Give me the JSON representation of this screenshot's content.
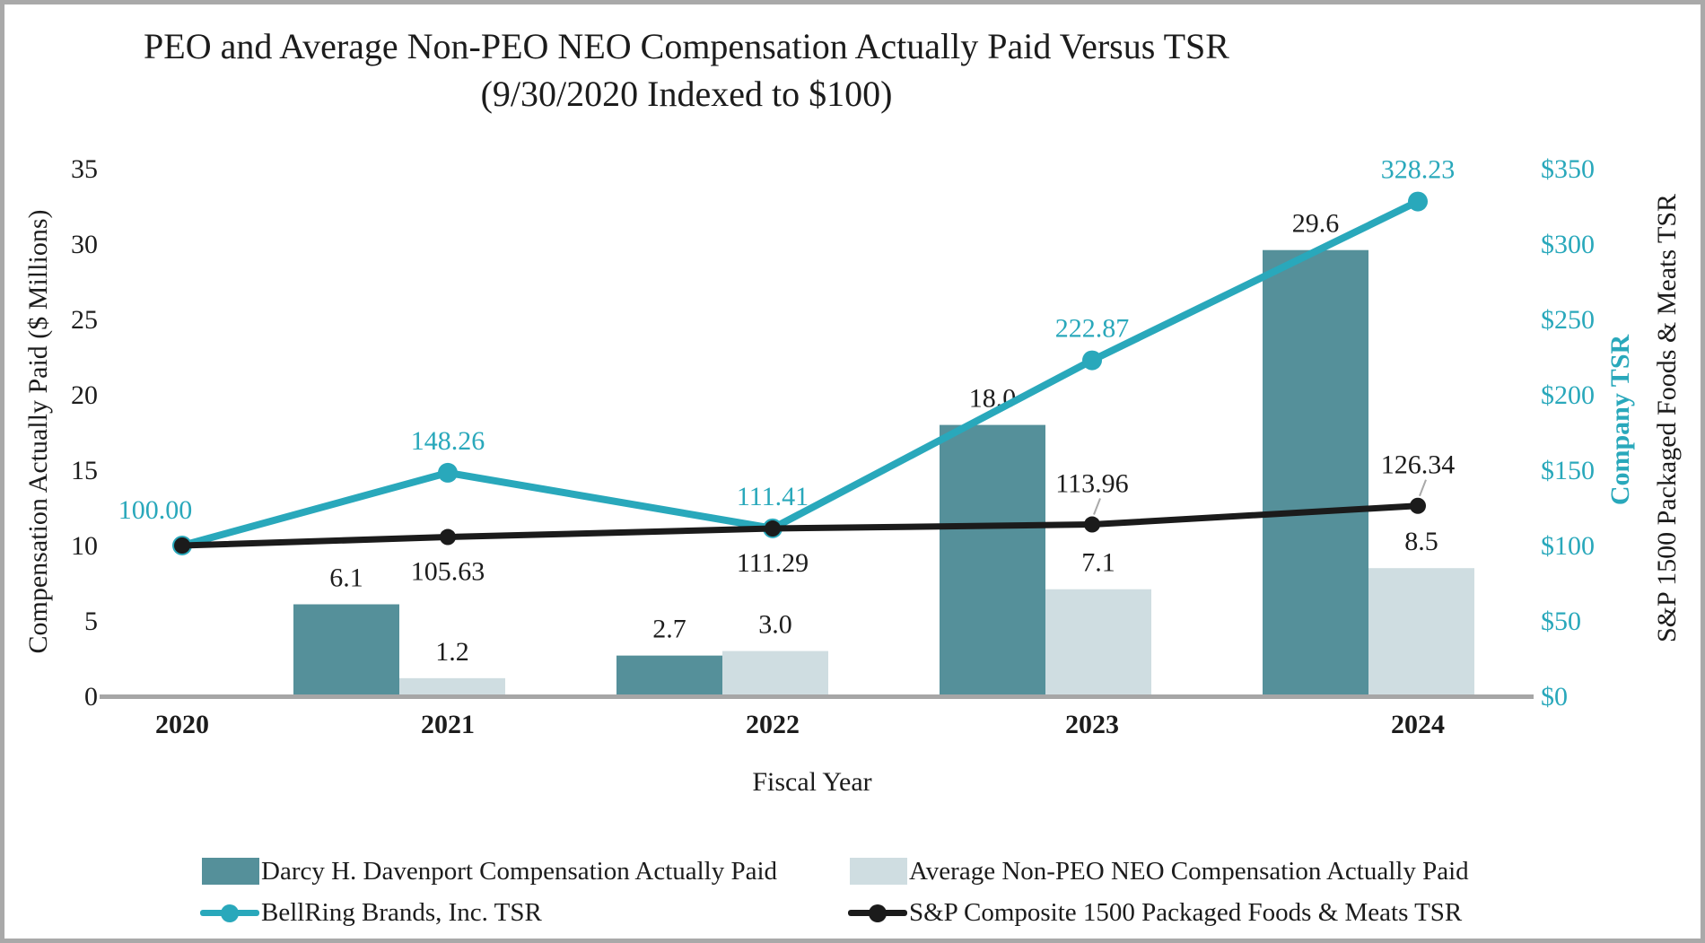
{
  "title": {
    "line1": "PEO and Average Non-PEO NEO Compensation Actually Paid Versus TSR",
    "line2": "(9/30/2020 Indexed to $100)"
  },
  "chart_data": {
    "type": "combo-bar-line",
    "categories": [
      "2020",
      "2021",
      "2022",
      "2023",
      "2024"
    ],
    "x_axis": {
      "title": "Fiscal Year"
    },
    "left_axis": {
      "title": "Compensation Actually Paid ($ Millions)",
      "min": 0,
      "max": 35,
      "step": 5,
      "tick_color": "#1c1c1c"
    },
    "right_axis": {
      "title_company": "Company TSR",
      "title_index": "S&P 1500 Packaged Foods & Meats TSR",
      "min": 0,
      "max": 350,
      "step": 50,
      "tick_prefix": "$",
      "tick_color": "#29a8bb"
    },
    "grid": false,
    "legend_position": "bottom",
    "axis_line_color": "#a6a6a6",
    "series": [
      {
        "name": "Darcy H. Davenport Compensation Actually Paid",
        "type": "bar",
        "axis": "left",
        "color": "#55909a",
        "values": [
          null,
          6.1,
          2.7,
          18,
          29.6
        ],
        "value_labels": [
          "",
          "6.1",
          "2.7",
          "18.0",
          "29.6"
        ]
      },
      {
        "name": "Average Non-PEO NEO Compensation Actually Paid",
        "type": "bar",
        "axis": "left",
        "color": "#cfdde1",
        "values": [
          null,
          1.2,
          3,
          7.1,
          8.5
        ],
        "value_labels": [
          "",
          "1.2",
          "3.0",
          "7.1",
          "8.5"
        ]
      },
      {
        "name": "BellRing Brands, Inc. TSR",
        "type": "line",
        "axis": "right",
        "color": "#29a8bb",
        "line_width": 8,
        "marker_radius": 11,
        "values": [
          100,
          148.26,
          111.41,
          222.87,
          328.23
        ],
        "value_labels": [
          "100.00",
          "148.26",
          "111.41",
          "222.87",
          "328.23"
        ],
        "label_pos": [
          "above-left",
          "above",
          "above",
          "above",
          "above"
        ]
      },
      {
        "name": "S&P Composite 1500 Packaged Foods & Meats TSR",
        "type": "line",
        "axis": "right",
        "color": "#1b1b1b",
        "line_width": 7,
        "marker_radius": 9,
        "values": [
          100,
          105.63,
          111.29,
          113.96,
          126.34
        ],
        "value_labels": [
          "",
          "105.63",
          "111.29",
          "113.96",
          "126.34"
        ],
        "label_pos": [
          "none",
          "below",
          "below",
          "above-leader",
          "above-leader"
        ]
      }
    ]
  }
}
